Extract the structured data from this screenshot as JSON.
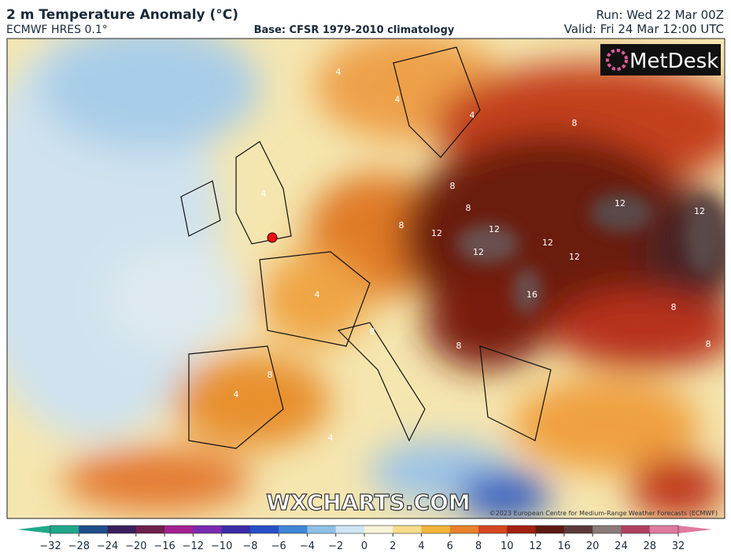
{
  "header": {
    "title": "2 m Temperature Anomaly (°C)",
    "model": "ECMWF HRES 0.1°",
    "base": "Base: CFSR 1979-2010 climatology",
    "run": "Run: Wed 22 Mar 00Z",
    "valid": "Valid: Fri 24 Mar 12:00 UTC"
  },
  "map": {
    "logo": "MetDesk",
    "watermark": "WXCHARTS.COM",
    "credit": "©2023 European Centre for Medium-Range Weather Forecasts (ECMWF)",
    "contour_labels": [
      4,
      4,
      4,
      4,
      8,
      8,
      8,
      8,
      12,
      12,
      12,
      12,
      12,
      12,
      16,
      4,
      8,
      8,
      12,
      4,
      8,
      8,
      4,
      8
    ]
  },
  "colorbar": {
    "ticks": [
      {
        "value": -32,
        "label": "−32"
      },
      {
        "value": -28,
        "label": "−28"
      },
      {
        "value": -24,
        "label": "−24"
      },
      {
        "value": -20,
        "label": "−20"
      },
      {
        "value": -16,
        "label": "−16"
      },
      {
        "value": -12,
        "label": "−12"
      },
      {
        "value": -10,
        "label": "−10"
      },
      {
        "value": -8,
        "label": "−8"
      },
      {
        "value": -6,
        "label": "−6"
      },
      {
        "value": -4,
        "label": "−4"
      },
      {
        "value": -2,
        "label": "−2"
      },
      0,
      2,
      4,
      6,
      8,
      10,
      12,
      16,
      20,
      24,
      28,
      32
    ],
    "colors": [
      "#1fa88a",
      "#1f4f8a",
      "#3a1f5e",
      "#6e1f4a",
      "#a4208f",
      "#7a2bb0",
      "#3b2ba8",
      "#2750c8",
      "#3f86d8",
      "#8fc0e6",
      "#cfe6f2",
      "#f6f3d6",
      "#f7dc8a",
      "#f3b43c",
      "#e9812b",
      "#d4461f",
      "#a3200f",
      "#5c1a12",
      "#5a3a38",
      "#8a7a7a",
      "#b04060",
      "#e07aa0"
    ]
  }
}
